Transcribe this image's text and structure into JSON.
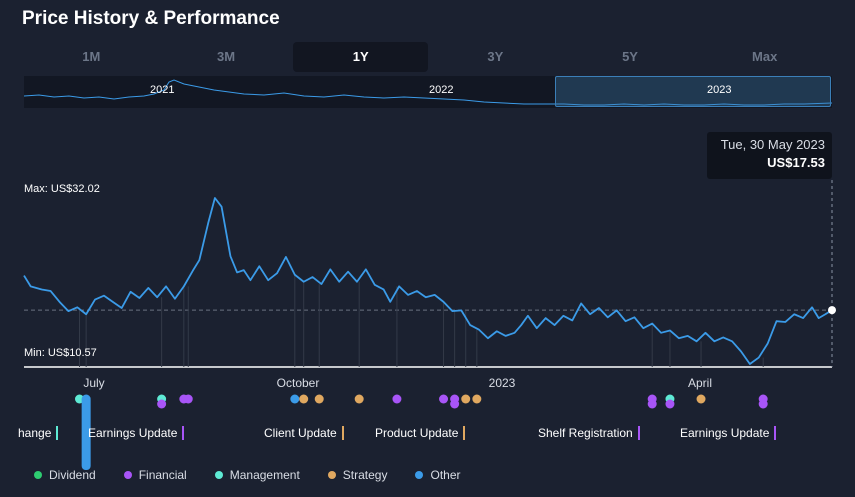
{
  "title": "Price History & Performance",
  "tabs": [
    {
      "label": "1M",
      "active": false
    },
    {
      "label": "3M",
      "active": false
    },
    {
      "label": "1Y",
      "active": true
    },
    {
      "label": "3Y",
      "active": false
    },
    {
      "label": "5Y",
      "active": false
    },
    {
      "label": "Max",
      "active": false
    }
  ],
  "mini_chart": {
    "years": [
      "2021",
      "2022",
      "2023"
    ],
    "selected_year": "2023"
  },
  "tooltip": {
    "date": "Tue, 30 May 2023",
    "price": "US$17.53"
  },
  "chart_data": {
    "type": "line",
    "y_unit": "US$",
    "max_label": "Max: US$32.02",
    "min_label": "Min: US$10.57",
    "ylim": [
      10.57,
      32.02
    ],
    "xlim": [
      "2022-05-31",
      "2023-05-30"
    ],
    "reference_line": 17.53,
    "x_ticks": [
      {
        "label": "July",
        "date": "2022-07-01"
      },
      {
        "label": "October",
        "date": "2022-10-01"
      },
      {
        "label": "2023",
        "date": "2023-01-01"
      },
      {
        "label": "April",
        "date": "2023-04-01"
      }
    ],
    "series": [
      {
        "color": "#3b9be8",
        "points": [
          [
            "2022-05-31",
            22.0
          ],
          [
            "2022-06-03",
            20.6
          ],
          [
            "2022-06-08",
            20.2
          ],
          [
            "2022-06-12",
            20.0
          ],
          [
            "2022-06-16",
            18.6
          ],
          [
            "2022-06-20",
            17.4
          ],
          [
            "2022-06-24",
            17.9
          ],
          [
            "2022-06-28",
            17.0
          ],
          [
            "2022-07-02",
            18.9
          ],
          [
            "2022-07-06",
            19.4
          ],
          [
            "2022-07-10",
            18.6
          ],
          [
            "2022-07-14",
            17.8
          ],
          [
            "2022-07-18",
            19.9
          ],
          [
            "2022-07-22",
            19.1
          ],
          [
            "2022-07-26",
            20.4
          ],
          [
            "2022-07-30",
            19.2
          ],
          [
            "2022-08-03",
            20.6
          ],
          [
            "2022-08-07",
            19.0
          ],
          [
            "2022-08-11",
            20.6
          ],
          [
            "2022-08-15",
            22.6
          ],
          [
            "2022-08-18",
            24.0
          ],
          [
            "2022-08-22",
            28.8
          ],
          [
            "2022-08-25",
            32.02
          ],
          [
            "2022-08-28",
            30.9
          ],
          [
            "2022-09-01",
            24.5
          ],
          [
            "2022-09-04",
            22.4
          ],
          [
            "2022-09-07",
            22.7
          ],
          [
            "2022-09-10",
            21.4
          ],
          [
            "2022-09-14",
            23.2
          ],
          [
            "2022-09-18",
            21.4
          ],
          [
            "2022-09-22",
            22.3
          ],
          [
            "2022-09-26",
            24.4
          ],
          [
            "2022-09-30",
            22.1
          ],
          [
            "2022-10-04",
            21.2
          ],
          [
            "2022-10-08",
            21.8
          ],
          [
            "2022-10-12",
            20.9
          ],
          [
            "2022-10-16",
            22.8
          ],
          [
            "2022-10-20",
            21.2
          ],
          [
            "2022-10-24",
            22.5
          ],
          [
            "2022-10-28",
            21.2
          ],
          [
            "2022-11-01",
            22.8
          ],
          [
            "2022-11-05",
            20.8
          ],
          [
            "2022-11-09",
            20.2
          ],
          [
            "2022-11-12",
            18.6
          ],
          [
            "2022-11-16",
            20.6
          ],
          [
            "2022-11-20",
            19.5
          ],
          [
            "2022-11-24",
            20.0
          ],
          [
            "2022-11-28",
            19.2
          ],
          [
            "2022-12-02",
            19.5
          ],
          [
            "2022-12-06",
            18.6
          ],
          [
            "2022-12-10",
            17.4
          ],
          [
            "2022-12-14",
            17.5
          ],
          [
            "2022-12-18",
            15.6
          ],
          [
            "2022-12-22",
            15.0
          ],
          [
            "2022-12-26",
            13.9
          ],
          [
            "2022-12-30",
            14.8
          ],
          [
            "2023-01-03",
            14.2
          ],
          [
            "2023-01-07",
            14.6
          ],
          [
            "2023-01-10",
            15.6
          ],
          [
            "2023-01-13",
            16.8
          ],
          [
            "2023-01-17",
            15.2
          ],
          [
            "2023-01-21",
            16.5
          ],
          [
            "2023-01-25",
            15.6
          ],
          [
            "2023-01-29",
            16.8
          ],
          [
            "2023-02-02",
            16.2
          ],
          [
            "2023-02-06",
            18.4
          ],
          [
            "2023-02-10",
            17.0
          ],
          [
            "2023-02-14",
            17.8
          ],
          [
            "2023-02-18",
            16.6
          ],
          [
            "2023-02-22",
            17.5
          ],
          [
            "2023-02-26",
            16.1
          ],
          [
            "2023-03-02",
            16.6
          ],
          [
            "2023-03-06",
            15.2
          ],
          [
            "2023-03-10",
            15.8
          ],
          [
            "2023-03-14",
            14.6
          ],
          [
            "2023-03-18",
            14.9
          ],
          [
            "2023-03-22",
            13.9
          ],
          [
            "2023-03-26",
            14.2
          ],
          [
            "2023-03-30",
            13.5
          ],
          [
            "2023-04-03",
            14.6
          ],
          [
            "2023-04-07",
            13.5
          ],
          [
            "2023-04-11",
            14.0
          ],
          [
            "2023-04-15",
            13.5
          ],
          [
            "2023-04-19",
            12.2
          ],
          [
            "2023-04-23",
            10.57
          ],
          [
            "2023-04-27",
            11.4
          ],
          [
            "2023-05-01",
            13.2
          ],
          [
            "2023-05-05",
            16.1
          ],
          [
            "2023-05-09",
            16.0
          ],
          [
            "2023-05-13",
            17.0
          ],
          [
            "2023-05-17",
            16.5
          ],
          [
            "2023-05-21",
            17.9
          ],
          [
            "2023-05-24",
            16.5
          ],
          [
            "2023-05-27",
            17.0
          ],
          [
            "2023-05-30",
            17.53
          ]
        ]
      }
    ]
  },
  "event_markers": [
    {
      "date": "2022-06-25",
      "type": "management"
    },
    {
      "date": "2022-06-28",
      "type": "other"
    },
    {
      "date": "2022-08-01",
      "type": "management"
    },
    {
      "date": "2022-08-01",
      "type": "financial"
    },
    {
      "date": "2022-08-11",
      "type": "financial"
    },
    {
      "date": "2022-08-13",
      "type": "financial"
    },
    {
      "date": "2022-09-30",
      "type": "other"
    },
    {
      "date": "2022-10-04",
      "type": "strategy"
    },
    {
      "date": "2022-10-11",
      "type": "strategy"
    },
    {
      "date": "2022-10-29",
      "type": "strategy"
    },
    {
      "date": "2022-11-15",
      "type": "financial"
    },
    {
      "date": "2022-12-06",
      "type": "financial"
    },
    {
      "date": "2022-12-11",
      "type": "financial"
    },
    {
      "date": "2022-12-11",
      "type": "financial"
    },
    {
      "date": "2022-12-16",
      "type": "strategy"
    },
    {
      "date": "2022-12-21",
      "type": "strategy"
    },
    {
      "date": "2023-03-10",
      "type": "financial"
    },
    {
      "date": "2023-03-10",
      "type": "financial"
    },
    {
      "date": "2023-03-18",
      "type": "management"
    },
    {
      "date": "2023-03-18",
      "type": "financial"
    },
    {
      "date": "2023-04-01",
      "type": "strategy"
    },
    {
      "date": "2023-04-29",
      "type": "financial"
    },
    {
      "date": "2023-04-29",
      "type": "financial"
    }
  ],
  "event_labels": [
    {
      "text": "hange",
      "type": "mgmt"
    },
    {
      "text": "Earnings Update",
      "type": "fin"
    },
    {
      "text": "Client Update",
      "type": "strat"
    },
    {
      "text": "Product Update",
      "type": "strat"
    },
    {
      "text": "Shelf Registration",
      "type": "fin"
    },
    {
      "text": "Earnings Update",
      "type": "fin"
    }
  ],
  "legend": [
    {
      "label": "Dividend",
      "color": "#2ecc71"
    },
    {
      "label": "Financial",
      "color": "#a855f7"
    },
    {
      "label": "Management",
      "color": "#5eead4"
    },
    {
      "label": "Strategy",
      "color": "#e0a860"
    },
    {
      "label": "Other",
      "color": "#3b9be8"
    }
  ],
  "event_colors": {
    "financial": "#a855f7",
    "management": "#5eead4",
    "strategy": "#e0a860",
    "other": "#3b9be8",
    "dividend": "#2ecc71"
  }
}
